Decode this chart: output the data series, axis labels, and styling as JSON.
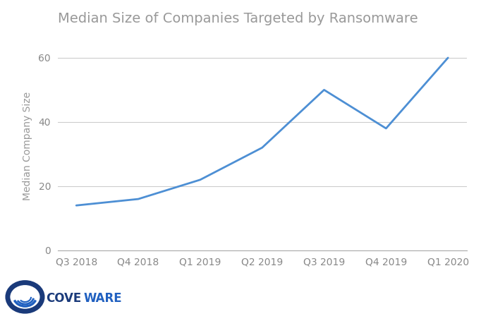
{
  "title": "Median Size of Companies Targeted by Ransomware",
  "xlabel": "",
  "ylabel": "Median Company Size",
  "categories": [
    "Q3 2018",
    "Q4 2018",
    "Q1 2019",
    "Q2 2019",
    "Q3 2019",
    "Q4 2019",
    "Q1 2020"
  ],
  "values": [
    14,
    16,
    22,
    32,
    50,
    38,
    60
  ],
  "line_color": "#4d8fd4",
  "ylim": [
    0,
    65
  ],
  "yticks": [
    0,
    20,
    40,
    60
  ],
  "background_color": "#ffffff",
  "title_color": "#999999",
  "axis_label_color": "#999999",
  "tick_label_color": "#888888",
  "grid_color": "#cccccc",
  "title_fontsize": 14,
  "ylabel_fontsize": 10,
  "tick_fontsize": 10,
  "line_width": 2.0,
  "logo_text_cove": "COVE",
  "logo_text_ware": "WARE",
  "logo_color_dark": "#1a3a7a",
  "logo_color_blue": "#2060c0"
}
